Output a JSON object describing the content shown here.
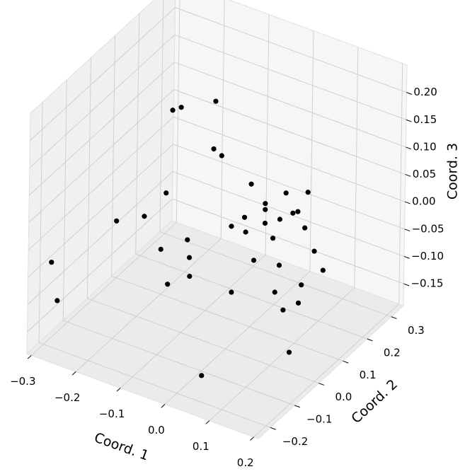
{
  "chart_data": {
    "type": "scatter3d",
    "xlabel": "Coord. 1",
    "ylabel": "Coord. 2",
    "zlabel": "Coord. 3",
    "color": "#000000",
    "xlim": [
      -0.31,
      0.21
    ],
    "ylim": [
      -0.25,
      0.35
    ],
    "zlim": [
      -0.19,
      0.25
    ],
    "xticks": [
      {
        "value": -0.3,
        "label": "−0.3"
      },
      {
        "value": -0.2,
        "label": "−0.2"
      },
      {
        "value": -0.1,
        "label": "−0.1"
      },
      {
        "value": 0,
        "label": "0.0"
      },
      0.1,
      0.2
    ],
    "yticks": [
      {
        "value": -0.2,
        "label": "−0.2"
      },
      {
        "value": -0.1,
        "label": "−0.1"
      },
      {
        "value": 0,
        "label": "0.0"
      },
      0.1,
      0.2,
      0.3
    ],
    "zticks": [
      {
        "value": -0.15,
        "label": "−0.15"
      },
      {
        "value": -0.1,
        "label": "−0.10"
      },
      {
        "value": -0.05,
        "label": "−0.05"
      },
      {
        "value": 0,
        "label": "0.00"
      },
      0.05,
      {
        "value": 0.1,
        "label": "0.10"
      },
      0.15,
      {
        "value": 0.2,
        "label": "0.20"
      }
    ],
    "x": [
      -0.152,
      -0.133,
      -0.056,
      -0.059,
      -0.041,
      0.026,
      -0.164,
      0.104,
      0.153,
      0.058,
      0.058,
      0.131,
      0.12,
      0.091,
      -0.274,
      -0.212,
      0.012,
      0.058,
      -0.017,
      0.147,
      0.015,
      0.076,
      -0.115,
      -0.174,
      0.169,
      -0.11,
      0.034,
      0.091,
      0.189,
      -0.29,
      -0.109,
      -0.158,
      0.141,
      -0.015,
      0.082,
      -0.276,
      0.135,
      0.101,
      0.18,
      0.049
    ],
    "y": [
      0.05,
      0.05,
      0.05,
      0.05,
      0.05,
      0.05,
      0.05,
      0.05,
      0.05,
      0.05,
      0.05,
      0.05,
      0.05,
      0.05,
      0.05,
      0.05,
      0.05,
      0.05,
      0.05,
      0.05,
      0.05,
      0.05,
      0.05,
      0.05,
      0.05,
      0.05,
      0.05,
      0.05,
      0.05,
      -0.19,
      0.05,
      0.05,
      0.05,
      0.05,
      0.05,
      -0.19,
      0.05,
      0.05,
      -0.07,
      -0.19
    ],
    "z": [
      0.181,
      0.192,
      0.226,
      0.138,
      0.131,
      0.099,
      0.026,
      0.106,
      0.122,
      0.073,
      0.062,
      0.08,
      0.074,
      0.054,
      -0.058,
      -0.031,
      0.034,
      0.037,
      0.009,
      0.055,
      0.008,
      0.015,
      -0.045,
      -0.08,
      0.019,
      -0.076,
      -0.038,
      -0.03,
      -0.01,
      -0.041,
      -0.11,
      -0.139,
      -0.051,
      -0.111,
      -0.082,
      -0.107,
      -0.086,
      -0.109,
      -0.114,
      -0.147
    ]
  }
}
